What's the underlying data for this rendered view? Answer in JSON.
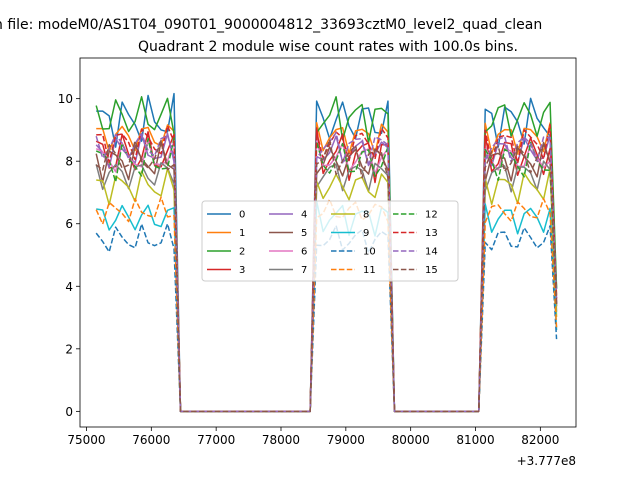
{
  "figure": {
    "suptitle": "n file: modeM0/AS1T04_090T01_9000004812_33693cztM0_level2_quad_clean",
    "offset_text": "+3.777e8"
  },
  "chart_data": {
    "type": "line",
    "title": "Quadrant 2 module wise count rates with 100.0s bins.",
    "xlabel": "",
    "ylabel": "",
    "xlim": [
      74900,
      82550
    ],
    "ylim": [
      -0.5,
      11.3
    ],
    "x_offset": 377700000,
    "xticks": [
      75000,
      76000,
      77000,
      78000,
      79000,
      80000,
      81000,
      82000
    ],
    "yticks": [
      0,
      2,
      4,
      6,
      8,
      10
    ],
    "legend_position": "center",
    "legend_columns": 4,
    "segments": [
      {
        "start": 75150,
        "count": 13
      },
      {
        "start": 78550,
        "count": 12
      },
      {
        "start": 81150,
        "count": 12
      }
    ],
    "colors": [
      "#1f77b4",
      "#ff7f0e",
      "#2ca02c",
      "#d62728",
      "#9467bd",
      "#8c564b",
      "#e377c2",
      "#7f7f7f",
      "#bcbd22",
      "#17becf"
    ],
    "series": [
      {
        "name": "0",
        "base": 9.3,
        "amp": 0.6,
        "phase": 0.0
      },
      {
        "name": "1",
        "base": 8.8,
        "amp": 0.4,
        "phase": 1.1
      },
      {
        "name": "2",
        "base": 9.4,
        "amp": 0.55,
        "phase": 2.3
      },
      {
        "name": "3",
        "base": 8.2,
        "amp": 0.6,
        "phase": 0.7
      },
      {
        "name": "4",
        "base": 8.3,
        "amp": 0.4,
        "phase": 1.9
      },
      {
        "name": "5",
        "base": 8.0,
        "amp": 0.45,
        "phase": 3.1
      },
      {
        "name": "6",
        "base": 8.1,
        "amp": 0.4,
        "phase": 0.4
      },
      {
        "name": "7",
        "base": 7.6,
        "amp": 0.4,
        "phase": 2.7
      },
      {
        "name": "8",
        "base": 7.2,
        "amp": 0.4,
        "phase": 1.5
      },
      {
        "name": "9",
        "base": 6.2,
        "amp": 0.4,
        "phase": 0.9
      },
      {
        "name": "10",
        "base": 5.5,
        "amp": 0.35,
        "phase": 2.0
      },
      {
        "name": "11",
        "base": 6.4,
        "amp": 0.3,
        "phase": 3.4
      },
      {
        "name": "12",
        "base": 8.0,
        "amp": 0.5,
        "phase": 0.2
      },
      {
        "name": "13",
        "base": 8.6,
        "amp": 0.45,
        "phase": 1.3
      },
      {
        "name": "14",
        "base": 8.5,
        "amp": 0.4,
        "phase": 2.5
      },
      {
        "name": "15",
        "base": 8.1,
        "amp": 0.45,
        "phase": 3.8
      }
    ]
  }
}
